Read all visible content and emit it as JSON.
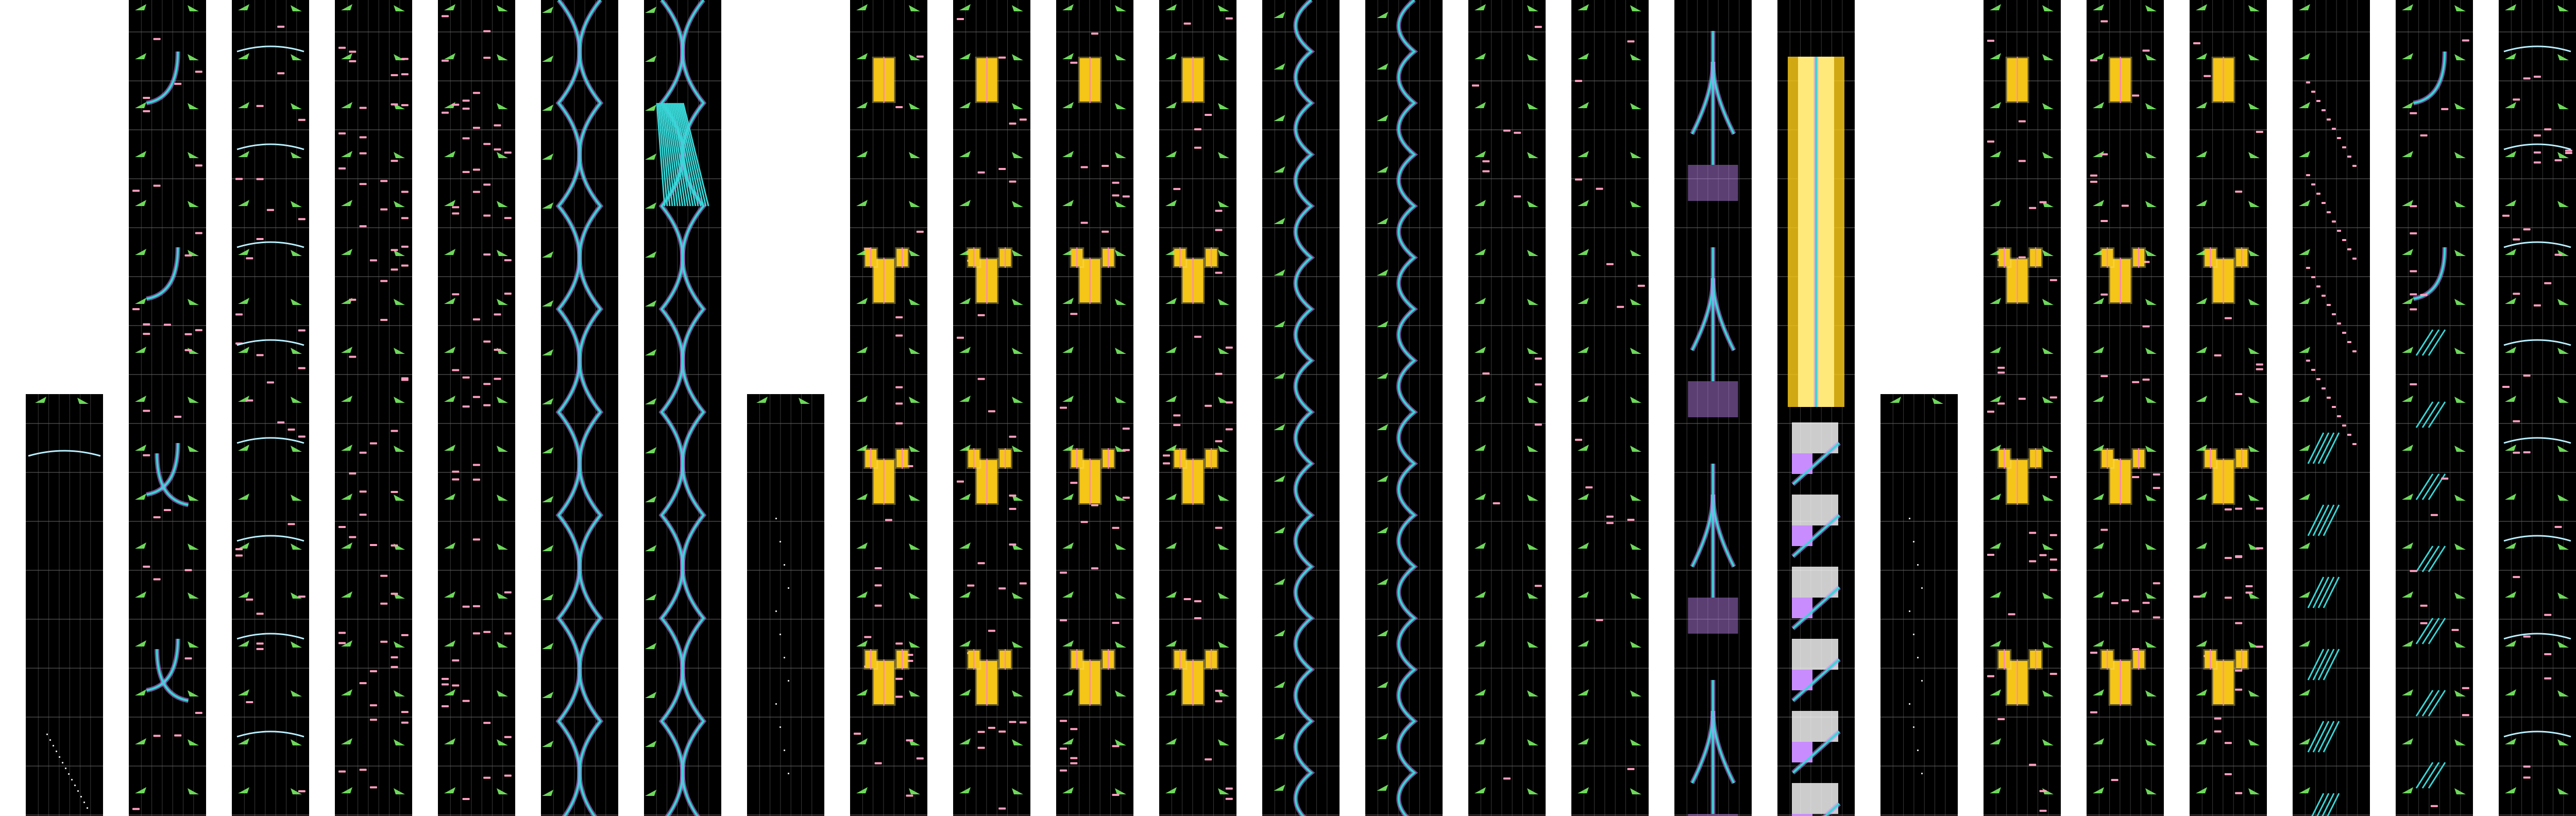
{
  "chart_view": {
    "background": "#ffffff",
    "lane_background": "#000000",
    "grid_color": "#3a3a3a",
    "beat_line_color": "#6a6a6a",
    "colors": {
      "tap_note": "#ff9ec0",
      "flick_arrow": "#6dd85a",
      "hold_body": "#38d6d6",
      "hold_edge": "#c98cff",
      "bar_note": "#f5c518",
      "bar_glow": "#ffe97a",
      "slide_link": "#b9f0ff"
    },
    "icons": [
      "tap-note",
      "flick-arrow",
      "hold-path",
      "slide-link",
      "multi-lane-bar"
    ]
  },
  "strips": [
    {
      "id": 1,
      "height": 0.517,
      "pattern": "sparse-flick"
    },
    {
      "id": 2,
      "height": 1.0,
      "pattern": "curve-hold"
    },
    {
      "id": 3,
      "height": 1.0,
      "pattern": "flick-tap"
    },
    {
      "id": 4,
      "height": 1.0,
      "pattern": "dense-tap"
    },
    {
      "id": 5,
      "height": 1.0,
      "pattern": "dense-tap"
    },
    {
      "id": 6,
      "height": 1.0,
      "pattern": "wave-hold"
    },
    {
      "id": 7,
      "height": 1.0,
      "pattern": "wave-hold"
    },
    {
      "id": 8,
      "height": 0.517,
      "pattern": "sparse-dots"
    },
    {
      "id": 9,
      "height": 1.0,
      "pattern": "bar-chords"
    },
    {
      "id": 10,
      "height": 1.0,
      "pattern": "bar-chords"
    },
    {
      "id": 11,
      "height": 1.0,
      "pattern": "bar-chords"
    },
    {
      "id": 12,
      "height": 1.0,
      "pattern": "bar-chords"
    },
    {
      "id": 13,
      "height": 1.0,
      "pattern": "snake-hold"
    },
    {
      "id": 14,
      "height": 1.0,
      "pattern": "snake-hold"
    },
    {
      "id": 15,
      "height": 1.0,
      "pattern": "sparse-tap"
    },
    {
      "id": 16,
      "height": 1.0,
      "pattern": "sparse-tap"
    },
    {
      "id": 17,
      "height": 1.0,
      "pattern": "pillar-hold"
    },
    {
      "id": 18,
      "height": 1.0,
      "pattern": "mega-hold"
    },
    {
      "id": 19,
      "height": 0.517,
      "pattern": "sparse-dots"
    },
    {
      "id": 20,
      "height": 1.0,
      "pattern": "bar-chords"
    },
    {
      "id": 21,
      "height": 1.0,
      "pattern": "bar-chords"
    },
    {
      "id": 22,
      "height": 1.0,
      "pattern": "bar-chords"
    },
    {
      "id": 23,
      "height": 1.0,
      "pattern": "stair-slide"
    },
    {
      "id": 24,
      "height": 1.0,
      "pattern": "slide-fans"
    },
    {
      "id": 25,
      "height": 1.0,
      "pattern": "flick-tap"
    }
  ]
}
